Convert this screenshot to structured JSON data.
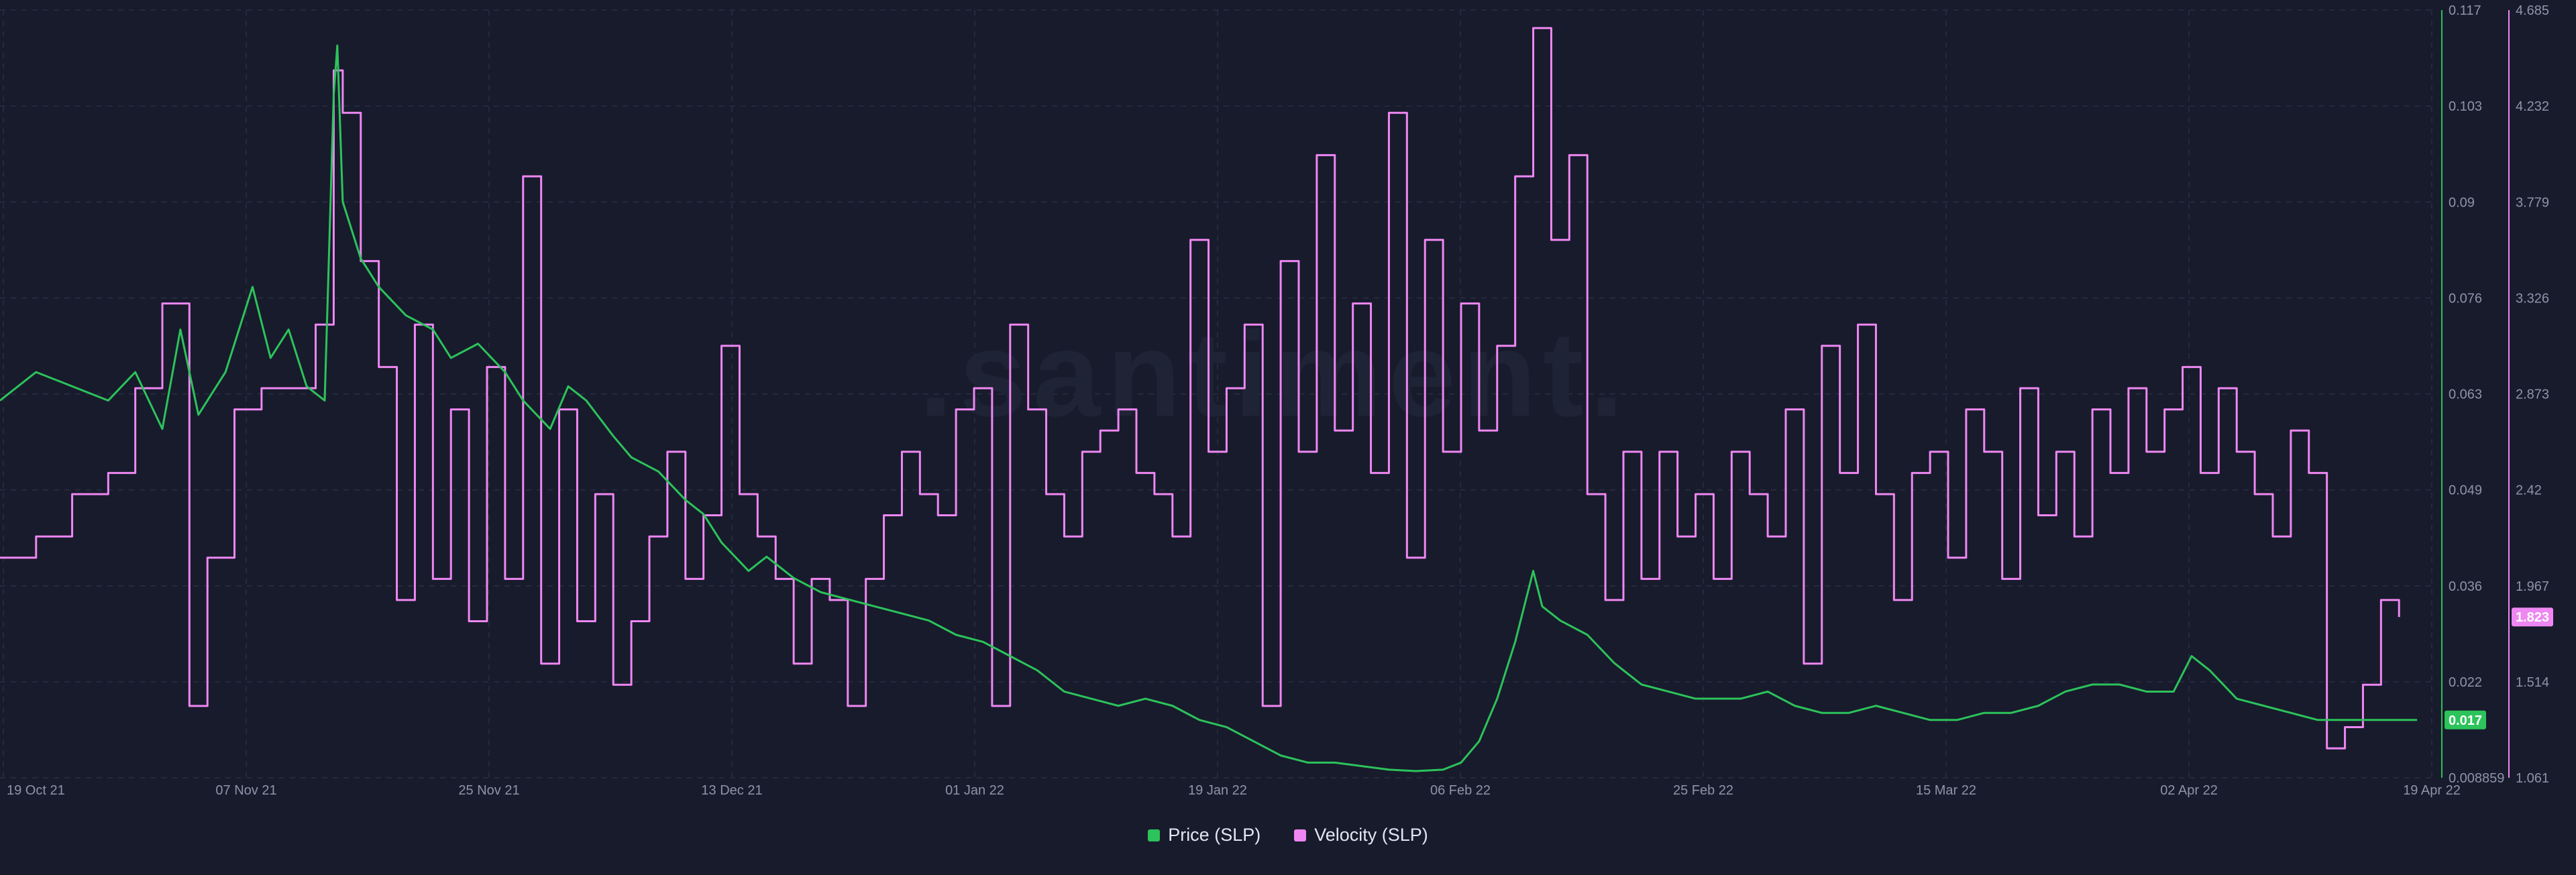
{
  "watermark": ".santiment.",
  "colors": {
    "background": "#181b2c",
    "price": "#2cc35b",
    "velocity": "#ee87f2",
    "grid": "#2a2e42",
    "tick": "#8e93a9"
  },
  "legend": {
    "price": {
      "label": "Price (SLP)",
      "icon": "square-swatch-icon"
    },
    "velocity": {
      "label": "Velocity (SLP)",
      "icon": "square-swatch-icon"
    }
  },
  "chart_data": {
    "type": "line",
    "title": "",
    "x_tick_labels": [
      "19 Oct 21",
      "07 Nov 21",
      "25 Nov 21",
      "13 Dec 21",
      "01 Jan 22",
      "19 Jan 22",
      "06 Feb 22",
      "25 Feb 22",
      "15 Mar 22",
      "02 Apr 22",
      "19 Apr 22"
    ],
    "x_range": [
      "19 Oct 21",
      "19 Apr 22"
    ],
    "series": [
      {
        "name": "Price (SLP)",
        "axis": "right-inner",
        "ylim": [
          0.008859,
          0.117
        ],
        "y_tick_labels": [
          "0.117",
          "0.103",
          "0.09",
          "0.076",
          "0.063",
          "0.049",
          "0.036",
          "0.022",
          "0.008859"
        ],
        "current_value": "0.017",
        "points": [
          [
            0,
            0.062
          ],
          [
            4,
            0.066
          ],
          [
            8,
            0.064
          ],
          [
            12,
            0.062
          ],
          [
            15,
            0.066
          ],
          [
            18,
            0.058
          ],
          [
            20,
            0.072
          ],
          [
            22,
            0.06
          ],
          [
            25,
            0.066
          ],
          [
            28,
            0.078
          ],
          [
            30,
            0.068
          ],
          [
            32,
            0.072
          ],
          [
            34,
            0.064
          ],
          [
            36,
            0.062
          ],
          [
            37,
            0.105
          ],
          [
            37.4,
            0.112
          ],
          [
            38,
            0.09
          ],
          [
            40,
            0.082
          ],
          [
            42,
            0.078
          ],
          [
            45,
            0.074
          ],
          [
            48,
            0.072
          ],
          [
            50,
            0.068
          ],
          [
            53,
            0.07
          ],
          [
            56,
            0.066
          ],
          [
            58,
            0.062
          ],
          [
            61,
            0.058
          ],
          [
            63,
            0.064
          ],
          [
            65,
            0.062
          ],
          [
            68,
            0.057
          ],
          [
            70,
            0.054
          ],
          [
            73,
            0.052
          ],
          [
            76,
            0.048
          ],
          [
            78,
            0.046
          ],
          [
            80,
            0.042
          ],
          [
            83,
            0.038
          ],
          [
            85,
            0.04
          ],
          [
            88,
            0.037
          ],
          [
            91,
            0.035
          ],
          [
            94,
            0.034
          ],
          [
            97,
            0.033
          ],
          [
            100,
            0.032
          ],
          [
            103,
            0.031
          ],
          [
            106,
            0.029
          ],
          [
            109,
            0.028
          ],
          [
            112,
            0.026
          ],
          [
            115,
            0.024
          ],
          [
            118,
            0.021
          ],
          [
            121,
            0.02
          ],
          [
            124,
            0.019
          ],
          [
            127,
            0.02
          ],
          [
            130,
            0.019
          ],
          [
            133,
            0.017
          ],
          [
            136,
            0.016
          ],
          [
            139,
            0.014
          ],
          [
            142,
            0.012
          ],
          [
            145,
            0.011
          ],
          [
            148,
            0.011
          ],
          [
            151,
            0.0105
          ],
          [
            154,
            0.01
          ],
          [
            157,
            0.0098
          ],
          [
            160,
            0.01
          ],
          [
            162,
            0.011
          ],
          [
            164,
            0.014
          ],
          [
            166,
            0.02
          ],
          [
            168,
            0.028
          ],
          [
            170,
            0.038
          ],
          [
            171,
            0.033
          ],
          [
            173,
            0.031
          ],
          [
            176,
            0.029
          ],
          [
            179,
            0.025
          ],
          [
            182,
            0.022
          ],
          [
            185,
            0.021
          ],
          [
            188,
            0.02
          ],
          [
            190,
            0.02
          ],
          [
            193,
            0.02
          ],
          [
            196,
            0.021
          ],
          [
            199,
            0.019
          ],
          [
            202,
            0.018
          ],
          [
            205,
            0.018
          ],
          [
            208,
            0.019
          ],
          [
            211,
            0.018
          ],
          [
            214,
            0.017
          ],
          [
            217,
            0.017
          ],
          [
            220,
            0.018
          ],
          [
            223,
            0.018
          ],
          [
            226,
            0.019
          ],
          [
            229,
            0.021
          ],
          [
            232,
            0.022
          ],
          [
            235,
            0.022
          ],
          [
            238,
            0.021
          ],
          [
            241,
            0.021
          ],
          [
            243,
            0.026
          ],
          [
            245,
            0.024
          ],
          [
            248,
            0.02
          ],
          [
            251,
            0.019
          ],
          [
            254,
            0.018
          ],
          [
            257,
            0.017
          ],
          [
            260,
            0.017
          ],
          [
            263,
            0.017
          ],
          [
            266,
            0.017
          ],
          [
            268,
            0.017
          ]
        ]
      },
      {
        "name": "Velocity (SLP)",
        "axis": "right-outer",
        "ylim": [
          1.061,
          4.685
        ],
        "y_tick_labels": [
          "4.685",
          "4.232",
          "3.779",
          "3.326",
          "2.873",
          "2.42",
          "1.967",
          "1.514",
          "1.061"
        ],
        "current_value": "1.823",
        "points": [
          [
            0,
            2.1
          ],
          [
            4,
            2.2
          ],
          [
            8,
            2.4
          ],
          [
            12,
            2.5
          ],
          [
            15,
            2.9
          ],
          [
            18,
            3.3
          ],
          [
            21,
            1.4
          ],
          [
            23,
            2.1
          ],
          [
            26,
            2.8
          ],
          [
            29,
            2.9
          ],
          [
            32,
            2.9
          ],
          [
            35,
            3.2
          ],
          [
            37,
            4.4
          ],
          [
            38,
            4.2
          ],
          [
            40,
            3.5
          ],
          [
            42,
            3.0
          ],
          [
            44,
            1.9
          ],
          [
            46,
            3.2
          ],
          [
            48,
            2.0
          ],
          [
            50,
            2.8
          ],
          [
            52,
            1.8
          ],
          [
            54,
            3.0
          ],
          [
            56,
            2.0
          ],
          [
            58,
            3.9
          ],
          [
            60,
            1.6
          ],
          [
            62,
            2.8
          ],
          [
            64,
            1.8
          ],
          [
            66,
            2.4
          ],
          [
            68,
            1.5
          ],
          [
            70,
            1.8
          ],
          [
            72,
            2.2
          ],
          [
            74,
            2.6
          ],
          [
            76,
            2.0
          ],
          [
            78,
            2.3
          ],
          [
            80,
            3.1
          ],
          [
            82,
            2.4
          ],
          [
            84,
            2.2
          ],
          [
            86,
            2.0
          ],
          [
            88,
            1.6
          ],
          [
            90,
            2.0
          ],
          [
            92,
            1.9
          ],
          [
            94,
            1.4
          ],
          [
            96,
            2.0
          ],
          [
            98,
            2.3
          ],
          [
            100,
            2.6
          ],
          [
            102,
            2.4
          ],
          [
            104,
            2.3
          ],
          [
            106,
            2.8
          ],
          [
            108,
            2.9
          ],
          [
            110,
            1.4
          ],
          [
            112,
            3.2
          ],
          [
            114,
            2.8
          ],
          [
            116,
            2.4
          ],
          [
            118,
            2.2
          ],
          [
            120,
            2.6
          ],
          [
            122,
            2.7
          ],
          [
            124,
            2.8
          ],
          [
            126,
            2.5
          ],
          [
            128,
            2.4
          ],
          [
            130,
            2.2
          ],
          [
            132,
            3.6
          ],
          [
            134,
            2.6
          ],
          [
            136,
            2.9
          ],
          [
            138,
            3.2
          ],
          [
            140,
            1.4
          ],
          [
            142,
            3.5
          ],
          [
            144,
            2.6
          ],
          [
            146,
            4.0
          ],
          [
            148,
            2.7
          ],
          [
            150,
            3.3
          ],
          [
            152,
            2.5
          ],
          [
            154,
            4.2
          ],
          [
            156,
            2.1
          ],
          [
            158,
            3.6
          ],
          [
            160,
            2.6
          ],
          [
            162,
            3.3
          ],
          [
            164,
            2.7
          ],
          [
            166,
            3.1
          ],
          [
            168,
            3.9
          ],
          [
            170,
            4.6
          ],
          [
            172,
            3.6
          ],
          [
            174,
            4.0
          ],
          [
            176,
            2.4
          ],
          [
            178,
            1.9
          ],
          [
            180,
            2.6
          ],
          [
            182,
            2.0
          ],
          [
            184,
            2.6
          ],
          [
            186,
            2.2
          ],
          [
            188,
            2.4
          ],
          [
            190,
            2.0
          ],
          [
            192,
            2.6
          ],
          [
            194,
            2.4
          ],
          [
            196,
            2.2
          ],
          [
            198,
            2.8
          ],
          [
            200,
            1.6
          ],
          [
            202,
            3.1
          ],
          [
            204,
            2.5
          ],
          [
            206,
            3.2
          ],
          [
            208,
            2.4
          ],
          [
            210,
            1.9
          ],
          [
            212,
            2.5
          ],
          [
            214,
            2.6
          ],
          [
            216,
            2.1
          ],
          [
            218,
            2.8
          ],
          [
            220,
            2.6
          ],
          [
            222,
            2.0
          ],
          [
            224,
            2.9
          ],
          [
            226,
            2.3
          ],
          [
            228,
            2.6
          ],
          [
            230,
            2.2
          ],
          [
            232,
            2.8
          ],
          [
            234,
            2.5
          ],
          [
            236,
            2.9
          ],
          [
            238,
            2.6
          ],
          [
            240,
            2.8
          ],
          [
            242,
            3.0
          ],
          [
            244,
            2.5
          ],
          [
            246,
            2.9
          ],
          [
            248,
            2.6
          ],
          [
            250,
            2.4
          ],
          [
            252,
            2.2
          ],
          [
            254,
            2.7
          ],
          [
            256,
            2.5
          ],
          [
            258,
            1.2
          ],
          [
            260,
            1.3
          ],
          [
            262,
            1.5
          ],
          [
            264,
            1.9
          ],
          [
            266,
            1.82
          ]
        ]
      }
    ]
  }
}
